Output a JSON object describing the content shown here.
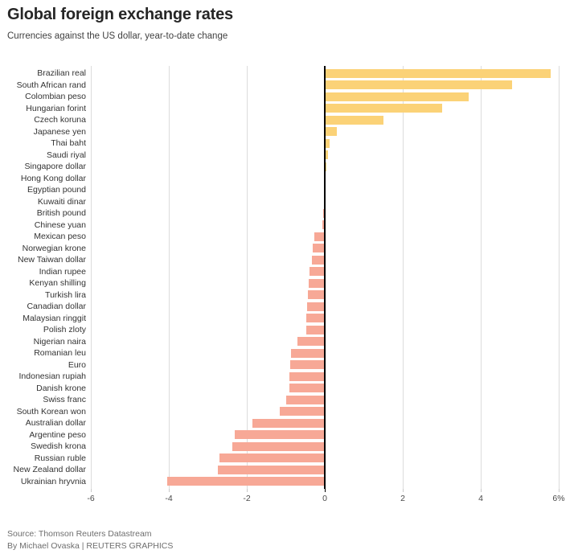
{
  "header": {
    "title": "Global foreign exchange rates",
    "subtitle": "Currencies against the US dollar, year-to-date change"
  },
  "footer": {
    "source": "Source: Thomson Reuters Datastream",
    "byline": "By Michael Ovaska | REUTERS GRAPHICS"
  },
  "colors": {
    "positive_bar": "#FBD277",
    "negative_bar": "#F7A896",
    "zero_line": "#000000",
    "gridline": "#DCDCDC",
    "tick": "#C9C9C9",
    "title_text": "#262626",
    "subtitle_text": "#3F3F3F",
    "label_text": "#333333",
    "axis_text": "#4A4A4A",
    "source_text": "#6E6E6E"
  },
  "chart_data": {
    "type": "bar",
    "orientation": "horizontal",
    "title": "Global foreign exchange rates",
    "subtitle": "Currencies against the US dollar, year-to-date change",
    "xlabel": "",
    "ylabel": "",
    "xlim": [
      -6,
      6
    ],
    "grid": true,
    "legend": false,
    "x_tick_values": [
      -6,
      -4,
      -2,
      0,
      2,
      4,
      6
    ],
    "x_tick_labels": [
      "-6",
      "-4",
      "-2",
      "0",
      "2",
      "4",
      "6%"
    ],
    "unit": "percent year-to-date change vs USD",
    "categories": [
      "Brazilian real",
      "South African rand",
      "Colombian peso",
      "Hungarian forint",
      "Czech koruna",
      "Japanese yen",
      "Thai baht",
      "Saudi riyal",
      "Singapore dollar",
      "Hong Kong dollar",
      "Egyptian pound",
      "Kuwaiti dinar",
      "British pound",
      "Chinese yuan",
      "Mexican peso",
      "Norwegian krone",
      "New Taiwan dollar",
      "Indian rupee",
      "Kenyan shilling",
      "Turkish lira",
      "Canadian dollar",
      "Malaysian ringgit",
      "Polish zloty",
      "Nigerian naira",
      "Romanian leu",
      "Euro",
      "Indonesian rupiah",
      "Danish krone",
      "Swiss franc",
      "South Korean won",
      "Australian dollar",
      "Argentine peso",
      "Swedish krona",
      "Russian ruble",
      "New Zealand dollar",
      "Ukrainian hryvnia"
    ],
    "values": [
      5.8,
      4.8,
      3.7,
      3.0,
      1.5,
      0.3,
      0.12,
      0.08,
      0.04,
      0.02,
      0.0,
      -0.02,
      -0.05,
      -0.07,
      -0.27,
      -0.3,
      -0.34,
      -0.39,
      -0.42,
      -0.44,
      -0.46,
      -0.48,
      -0.48,
      -0.7,
      -0.86,
      -0.88,
      -0.9,
      -0.91,
      -1.0,
      -1.15,
      -1.85,
      -2.3,
      -2.37,
      -2.7,
      -2.75,
      -4.05
    ]
  }
}
